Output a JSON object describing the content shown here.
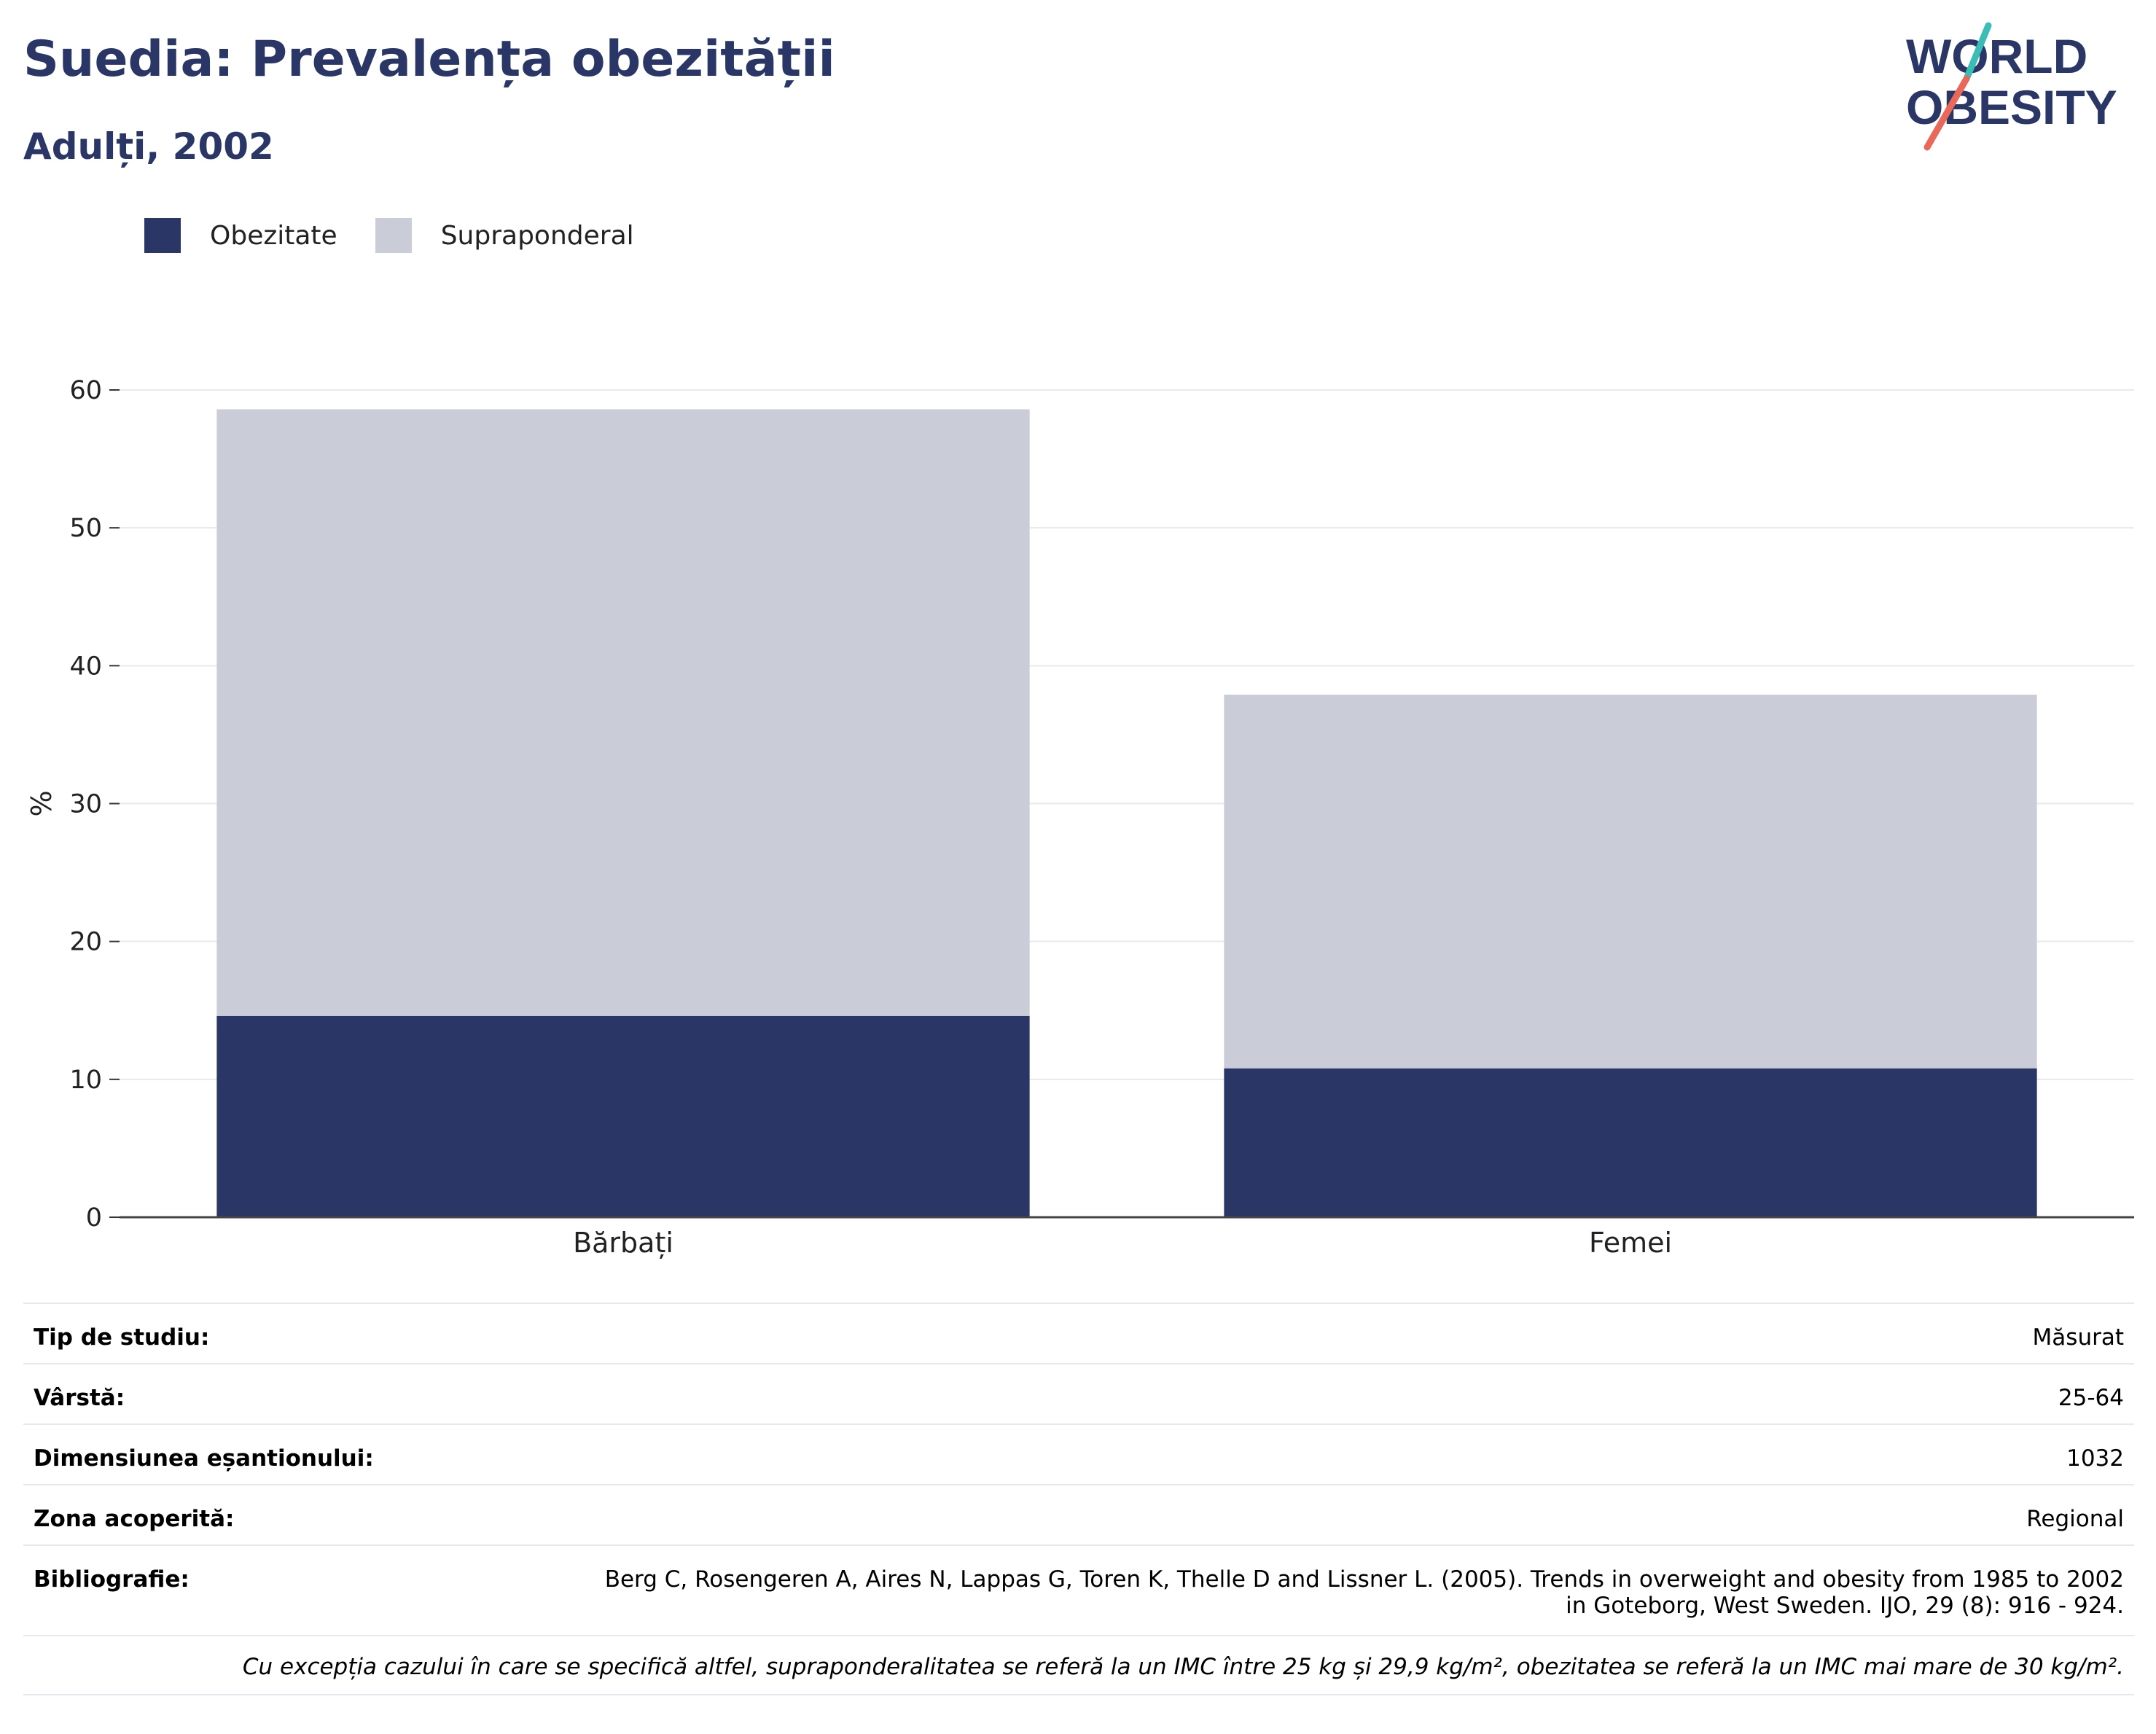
{
  "header": {
    "title": "Suedia: Prevalența obezității",
    "subtitle": "Adulți, 2002"
  },
  "logo": {
    "line1": "WORLD",
    "line2": "OBESITY",
    "colors": {
      "text": "#2a3766",
      "slash_top": "#3bbcb4",
      "slash_bottom": "#e8685a"
    }
  },
  "legend": [
    {
      "label": "Obezitate",
      "color": "#2a3766"
    },
    {
      "label": "Supraponderal",
      "color": "#cacdd8"
    }
  ],
  "chart_data": {
    "type": "bar",
    "stacked": true,
    "categories": [
      "Bărbați",
      "Femei"
    ],
    "series": [
      {
        "name": "Obezitate",
        "values": [
          14.6,
          10.8
        ],
        "color": "#2a3766"
      },
      {
        "name": "Supraponderal",
        "values": [
          44.0,
          27.1
        ],
        "color": "#cacdd8"
      }
    ],
    "totals": [
      58.6,
      37.9
    ],
    "title": "",
    "xlabel": "",
    "ylabel": "%",
    "ylim": [
      0,
      60
    ],
    "yticks": [
      0,
      10,
      20,
      30,
      40,
      50,
      60
    ],
    "grid": true,
    "legend_position": "top-left"
  },
  "info": {
    "rows": [
      {
        "label": "Tip de studiu:",
        "value": [
          "Măsurat"
        ]
      },
      {
        "label": "Vârstă:",
        "value": [
          "25-64"
        ]
      },
      {
        "label": "Dimensiunea eșantionului:",
        "value": [
          "1032"
        ]
      },
      {
        "label": "Zona acoperită:",
        "value": [
          "Regional"
        ]
      },
      {
        "label": "Bibliografie:",
        "value": [
          "Berg C, Rosengeren A, Aires N, Lappas G, Toren K, Thelle D and Lissner L. (2005). Trends in overweight and obesity from 1985 to 2002",
          "in Goteborg, West Sweden. IJO, 29 (8): 916 - 924."
        ]
      }
    ],
    "note": "Cu excepția cazului în care se specifică altfel, supraponderalitatea se referă la un IMC între 25 kg și 29,9 kg/m², obezitatea se referă la un IMC mai mare de 30 kg/m²."
  }
}
